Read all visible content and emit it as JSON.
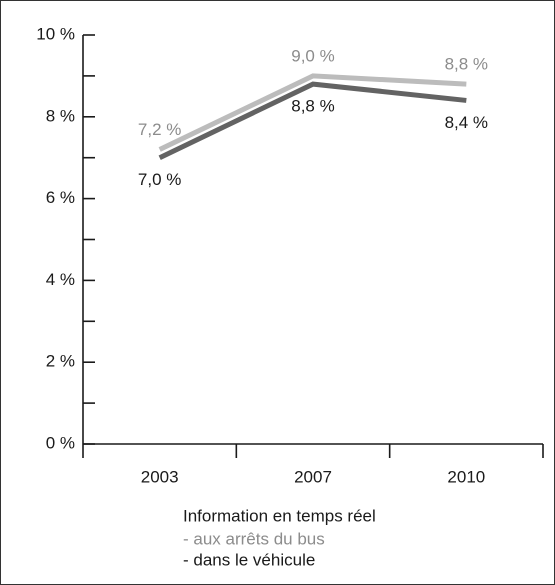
{
  "chart_data": {
    "type": "line",
    "categories": [
      "2003",
      "2007",
      "2010"
    ],
    "series": [
      {
        "name": "- aux arrêts du bus",
        "color": "#bcbcbc",
        "label_color": "#8c8c8c",
        "values": [
          7.2,
          9.0,
          8.8
        ],
        "value_labels": [
          "7,2 %",
          "9,0 %",
          "8,8 %"
        ]
      },
      {
        "name": "- dans le véhicule",
        "color": "#636363",
        "label_color": "#1a1a1a",
        "values": [
          7.0,
          8.8,
          8.4
        ],
        "value_labels": [
          "7,0 %",
          "8,8 %",
          "8,4 %"
        ]
      }
    ],
    "legend_title": "Information en temps réel",
    "ylim": [
      0,
      10
    ],
    "yticks": [
      {
        "value": 0,
        "label": "0 %"
      },
      {
        "value": 2,
        "label": "2 %"
      },
      {
        "value": 4,
        "label": "4 %"
      },
      {
        "value": 6,
        "label": "6 %"
      },
      {
        "value": 8,
        "label": "8 %"
      },
      {
        "value": 10,
        "label": "10 %"
      }
    ],
    "yminorticks": [
      1,
      3,
      5,
      7,
      9
    ]
  }
}
